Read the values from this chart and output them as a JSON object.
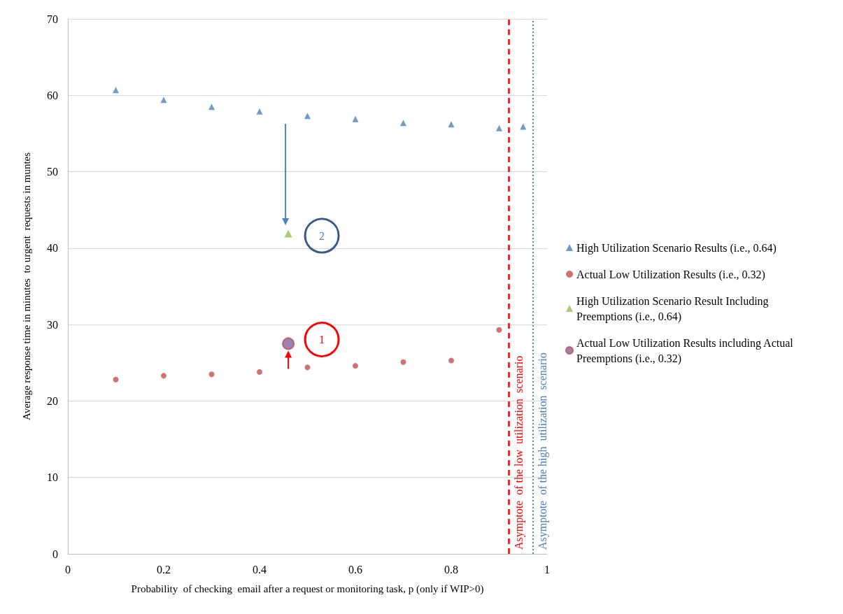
{
  "chart_data": {
    "type": "scatter",
    "xlabel": "Probability  of checking  email after a request or monitoring task, p (only if WIP>0)",
    "ylabel": "Average response time in minutes  to urgent  requests in muntes",
    "series": [
      {
        "name": "High Utilization Scenario Results (i.e., 0.64)",
        "color": "#4f81bd",
        "marker": "triangle",
        "x": [
          0.1,
          0.2,
          0.3,
          0.4,
          0.5,
          0.6,
          0.7,
          0.8,
          0.9,
          0.95
        ],
        "values": [
          60.7,
          59.4,
          58.5,
          57.9,
          57.3,
          56.9,
          56.4,
          56.2,
          55.7,
          55.9
        ]
      },
      {
        "name": "Actual Low Utilization Results (i.e., 0.32)",
        "color": "#c0504d",
        "marker": "circle",
        "x": [
          0.1,
          0.2,
          0.3,
          0.4,
          0.5,
          0.6,
          0.7,
          0.8,
          0.9
        ],
        "values": [
          22.8,
          23.3,
          23.5,
          23.8,
          24.4,
          24.6,
          25.1,
          25.3,
          29.3
        ]
      },
      {
        "name": "High Utilization Scenario Result Including Preemptions (i.e., 0.64)",
        "color": "#9bbb59",
        "marker": "triangle",
        "x": [
          0.46
        ],
        "values": [
          41.9
        ]
      },
      {
        "name": "Actual Low Utilization Results including Actual Preemptions (i.e., 0.32)",
        "color": "#8064a2",
        "marker": "circle",
        "x": [
          0.46
        ],
        "values": [
          27.5
        ]
      }
    ],
    "xlim": [
      0,
      1
    ],
    "xticks": [
      0,
      0.2,
      0.4,
      0.6,
      0.8,
      1
    ],
    "ylim": [
      0,
      70
    ],
    "yticks": [
      0,
      10,
      20,
      30,
      40,
      50,
      60,
      70
    ],
    "grid": "y",
    "legend": "right",
    "ref_lines": [
      {
        "axis": "x",
        "value": 0.92,
        "label": "Asymptote  of the low  utilization  scenario",
        "color": "#ff0000",
        "line_style": "dashed"
      },
      {
        "axis": "x",
        "value": 0.97,
        "label": "Asymptote  of the high  utilization  scenario",
        "color": "#4f81bd",
        "line_style": "dotted"
      }
    ],
    "annotations": [
      "2",
      "1"
    ]
  }
}
